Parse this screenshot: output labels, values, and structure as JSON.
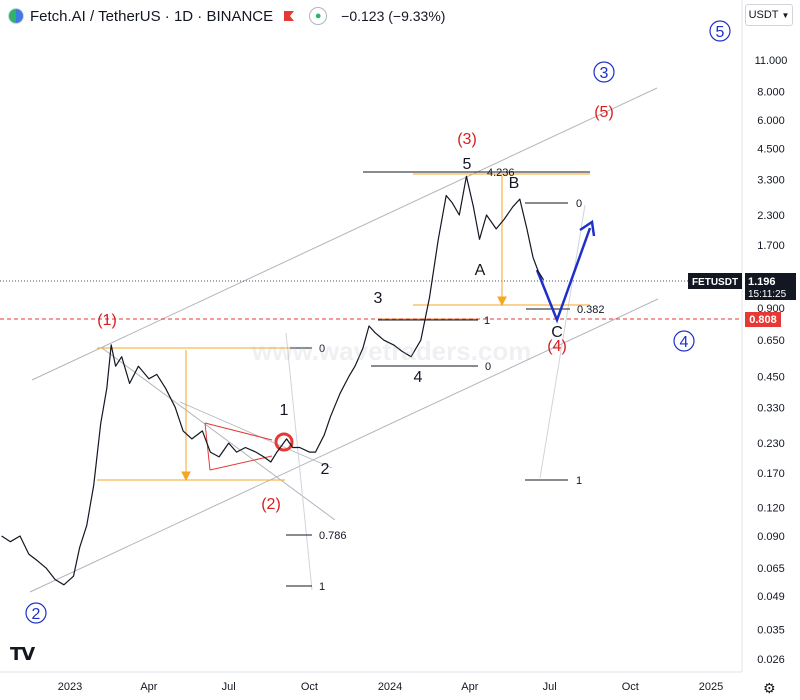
{
  "header": {
    "title": "Fetch.AI / TetherUS · 1D · BINANCE",
    "change": "−0.123 (−9.33%)",
    "currency": "USDT"
  },
  "watermark": "www.wavetraders.com",
  "price_tags": {
    "symbol": "FETUSDT",
    "last": "1.196",
    "countdown": "15:11:25",
    "line_level": "0.808"
  },
  "colors": {
    "price": "#131722",
    "channel": "#b2b5be",
    "fib": "#f5a623",
    "wedge": "#e53935",
    "blue": "#1e30c8",
    "red": "#d81e1e",
    "dashed_red": "#e53935",
    "tag_dark": "#131722",
    "tag_red": "#e53935"
  },
  "chart_data": {
    "type": "line",
    "y_scale": "log",
    "ylim": [
      0.022,
      16.5
    ],
    "y_ticks": [
      "11.000",
      "8.000",
      "6.000",
      "4.500",
      "3.300",
      "2.300",
      "1.700",
      "0.900",
      "0.650",
      "0.450",
      "0.330",
      "0.230",
      "0.170",
      "0.120",
      "0.090",
      "0.065",
      "0.049",
      "0.035",
      "0.026"
    ],
    "x_ticks": [
      "2023",
      "Apr",
      "Jul",
      "Oct",
      "2024",
      "Apr",
      "Jul",
      "Oct",
      "2025"
    ],
    "series": [
      {
        "values": [
          [
            "2022-10-15",
            0.09
          ],
          [
            "2022-10-25",
            0.085
          ],
          [
            "2022-11-05",
            0.09
          ],
          [
            "2022-11-15",
            0.075
          ],
          [
            "2022-11-25",
            0.07
          ],
          [
            "2022-12-05",
            0.065
          ],
          [
            "2022-12-15",
            0.058
          ],
          [
            "2022-12-25",
            0.055
          ],
          [
            "2023-01-05",
            0.06
          ],
          [
            "2023-01-12",
            0.08
          ],
          [
            "2023-01-20",
            0.1
          ],
          [
            "2023-01-28",
            0.15
          ],
          [
            "2023-02-05",
            0.28
          ],
          [
            "2023-02-12",
            0.4
          ],
          [
            "2023-02-17",
            0.62
          ],
          [
            "2023-02-22",
            0.5
          ],
          [
            "2023-03-01",
            0.55
          ],
          [
            "2023-03-10",
            0.42
          ],
          [
            "2023-03-20",
            0.5
          ],
          [
            "2023-04-01",
            0.44
          ],
          [
            "2023-04-10",
            0.46
          ],
          [
            "2023-04-20",
            0.4
          ],
          [
            "2023-05-01",
            0.33
          ],
          [
            "2023-05-10",
            0.26
          ],
          [
            "2023-05-20",
            0.24
          ],
          [
            "2023-06-01",
            0.26
          ],
          [
            "2023-06-10",
            0.21
          ],
          [
            "2023-06-20",
            0.2
          ],
          [
            "2023-07-01",
            0.23
          ],
          [
            "2023-07-10",
            0.21
          ],
          [
            "2023-07-20",
            0.22
          ],
          [
            "2023-08-01",
            0.21
          ],
          [
            "2023-08-10",
            0.2
          ],
          [
            "2023-08-18",
            0.19
          ],
          [
            "2023-08-25",
            0.21
          ],
          [
            "2023-09-05",
            0.24
          ],
          [
            "2023-09-12",
            0.22
          ],
          [
            "2023-09-20",
            0.22
          ],
          [
            "2023-10-01",
            0.21
          ],
          [
            "2023-10-08",
            0.21
          ],
          [
            "2023-10-18",
            0.25
          ],
          [
            "2023-10-25",
            0.3
          ],
          [
            "2023-11-05",
            0.38
          ],
          [
            "2023-11-15",
            0.45
          ],
          [
            "2023-11-22",
            0.5
          ],
          [
            "2023-12-01",
            0.6
          ],
          [
            "2023-12-08",
            0.75
          ],
          [
            "2023-12-15",
            0.7
          ],
          [
            "2023-12-25",
            0.65
          ],
          [
            "2024-01-05",
            0.62
          ],
          [
            "2024-01-15",
            0.58
          ],
          [
            "2024-01-25",
            0.55
          ],
          [
            "2024-02-05",
            0.65
          ],
          [
            "2024-02-15",
            1.0
          ],
          [
            "2024-02-25",
            1.8
          ],
          [
            "2024-03-05",
            2.8
          ],
          [
            "2024-03-12",
            2.6
          ],
          [
            "2024-03-20",
            2.3
          ],
          [
            "2024-03-28",
            3.4
          ],
          [
            "2024-04-05",
            2.5
          ],
          [
            "2024-04-12",
            1.8
          ],
          [
            "2024-04-20",
            2.3
          ],
          [
            "2024-05-01",
            2.0
          ],
          [
            "2024-05-10",
            2.2
          ],
          [
            "2024-05-20",
            2.5
          ],
          [
            "2024-05-28",
            2.7
          ],
          [
            "2024-06-05",
            2.0
          ],
          [
            "2024-06-12",
            1.5
          ],
          [
            "2024-06-18",
            1.3
          ],
          [
            "2024-06-24",
            1.196
          ]
        ]
      }
    ]
  },
  "labels": {
    "blue_circled": [
      "5",
      "3",
      "4",
      "2"
    ],
    "red": [
      "(5)",
      "(3)",
      "(1)",
      "(2)",
      "(4)"
    ],
    "black": [
      "5",
      "B",
      "A",
      "3",
      "4",
      "C",
      "1",
      "2"
    ],
    "fib": [
      "4.236",
      "0",
      "0.382",
      "1",
      "0",
      "0",
      "0.786",
      "1",
      "1"
    ]
  }
}
